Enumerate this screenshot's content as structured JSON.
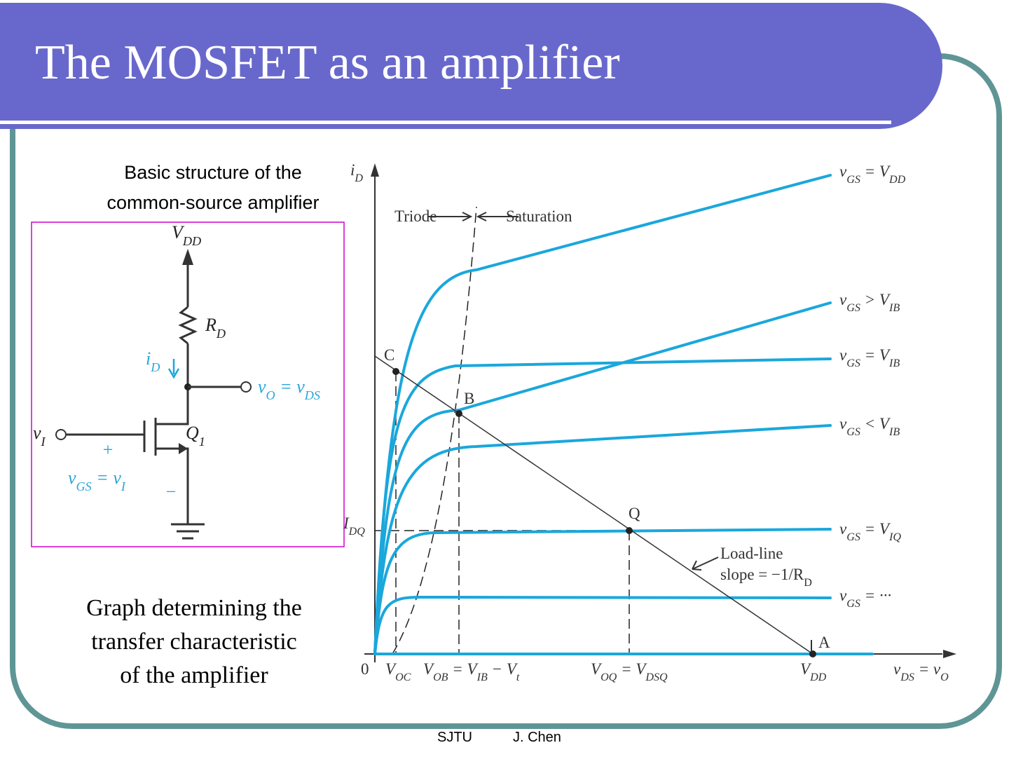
{
  "header": {
    "title": "The MOSFET as an amplifier"
  },
  "captions": {
    "circuit": [
      "Basic structure of the",
      "common-source amplifier"
    ],
    "graph": [
      "Graph determining the",
      "transfer characteristic",
      "of the amplifier"
    ]
  },
  "circuit": {
    "labels": [
      [
        {
          "text": "V"
        },
        {
          "sub": "DD"
        }
      ],
      [
        {
          "text": "R"
        },
        {
          "sub": "D"
        }
      ],
      [
        {
          "text": "i"
        },
        {
          "sub": "D"
        }
      ],
      [
        {
          "text": "v"
        },
        {
          "sub": "O"
        },
        {
          "text": " = v"
        },
        {
          "sub": "DS"
        }
      ],
      [
        {
          "text": "v"
        },
        {
          "sub": "I"
        }
      ],
      [
        {
          "text": "Q"
        },
        {
          "sub": "1"
        }
      ],
      [
        {
          "text": "+"
        }
      ],
      [
        {
          "text": "v"
        },
        {
          "sub": "GS"
        },
        {
          "text": " = v"
        },
        {
          "sub": "I"
        }
      ],
      [
        {
          "text": "−"
        }
      ]
    ]
  },
  "graph": {
    "labels": [
      [
        {
          "text": "i"
        },
        {
          "sub": "D"
        }
      ],
      [
        {
          "text": "Triode"
        }
      ],
      [
        {
          "text": "Saturation"
        }
      ],
      [
        {
          "text": "C"
        }
      ],
      [
        {
          "text": "B"
        }
      ],
      [
        {
          "text": "Q"
        }
      ],
      [
        {
          "text": "A"
        }
      ],
      [
        {
          "text": "v"
        },
        {
          "sub": "GS"
        },
        {
          "text": " = V"
        },
        {
          "sub": "DD"
        }
      ],
      [
        {
          "text": "v"
        },
        {
          "sub": "GS"
        },
        {
          "text": " > V"
        },
        {
          "sub": "IB"
        }
      ],
      [
        {
          "text": "v"
        },
        {
          "sub": "GS"
        },
        {
          "text": " = V"
        },
        {
          "sub": "IB"
        }
      ],
      [
        {
          "text": "v"
        },
        {
          "sub": "GS"
        },
        {
          "text": " < V"
        },
        {
          "sub": "IB"
        }
      ],
      [
        {
          "text": "v"
        },
        {
          "sub": "GS"
        },
        {
          "text": " = V"
        },
        {
          "sub": "IQ"
        }
      ],
      [
        {
          "text": "v"
        },
        {
          "sub": "GS"
        },
        {
          "text": " = ···"
        }
      ],
      [
        {
          "text": "I"
        },
        {
          "sub": "DQ"
        }
      ],
      [
        {
          "text": "Load-line"
        }
      ],
      [
        {
          "text": "slope = −1/R"
        },
        {
          "sub": "D"
        }
      ],
      [
        {
          "text": "0"
        }
      ],
      [
        {
          "text": "V"
        },
        {
          "sub": "OC"
        }
      ],
      [
        {
          "text": "V"
        },
        {
          "sub": "OB"
        },
        {
          "text": " = V"
        },
        {
          "sub": "IB"
        },
        {
          "text": " − V"
        },
        {
          "sub": "t"
        }
      ],
      [
        {
          "text": "V"
        },
        {
          "sub": "OQ"
        },
        {
          "text": " = V"
        },
        {
          "sub": "DSQ"
        }
      ],
      [
        {
          "text": "V"
        },
        {
          "sub": "DD"
        }
      ],
      [
        {
          "text": "v"
        },
        {
          "sub": "DS"
        },
        {
          "text": " = v"
        },
        {
          "sub": "O"
        }
      ]
    ]
  },
  "footer": [
    "SJTU",
    "J. Chen"
  ]
}
